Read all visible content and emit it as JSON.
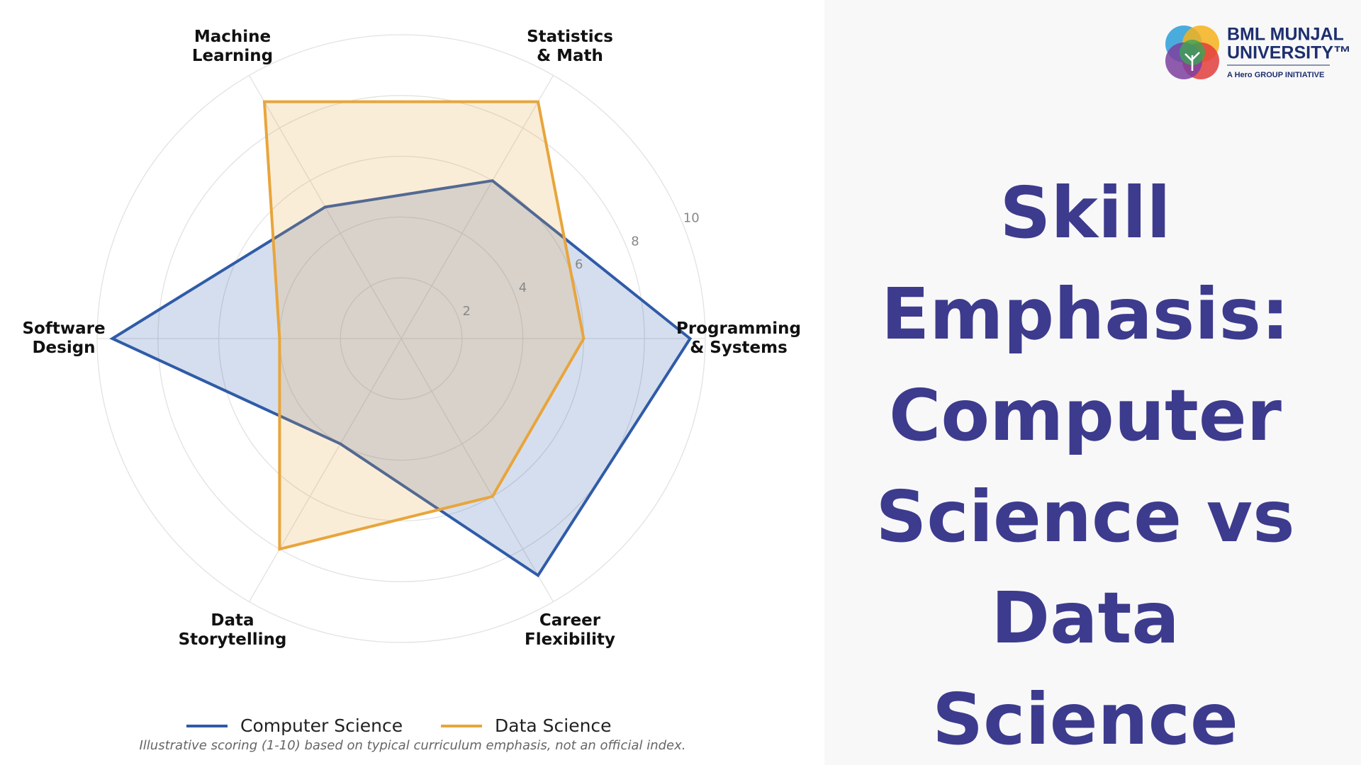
{
  "chart_data": {
    "type": "radar",
    "title": "Skill Emphasis: Computer Science vs Data Science",
    "categories": [
      "Programming\n& Systems",
      "Statistics\n& Math",
      "Machine\nLearning",
      "Software\nDesign",
      "Data\nStorytelling",
      "Career\nFlexibility"
    ],
    "series": [
      {
        "name": "Computer Science",
        "color": "#2f5ba8",
        "values": [
          9.5,
          6,
          5,
          9.5,
          4,
          9
        ]
      },
      {
        "name": "Data Science",
        "color": "#e8a53c",
        "values": [
          6,
          9,
          9,
          4,
          8,
          6
        ]
      }
    ],
    "ylim": [
      0,
      10
    ],
    "yticks": [
      2,
      4,
      6,
      8,
      10
    ],
    "grid": true,
    "legend": "bottom",
    "note": "Illustrative scoring (1-10) based on typical curriculum emphasis, not an official index."
  },
  "logo": {
    "line1": "BML MUNJAL",
    "line2": "UNIVERSITY™",
    "tagline": "A Hero GROUP INITIATIVE"
  }
}
